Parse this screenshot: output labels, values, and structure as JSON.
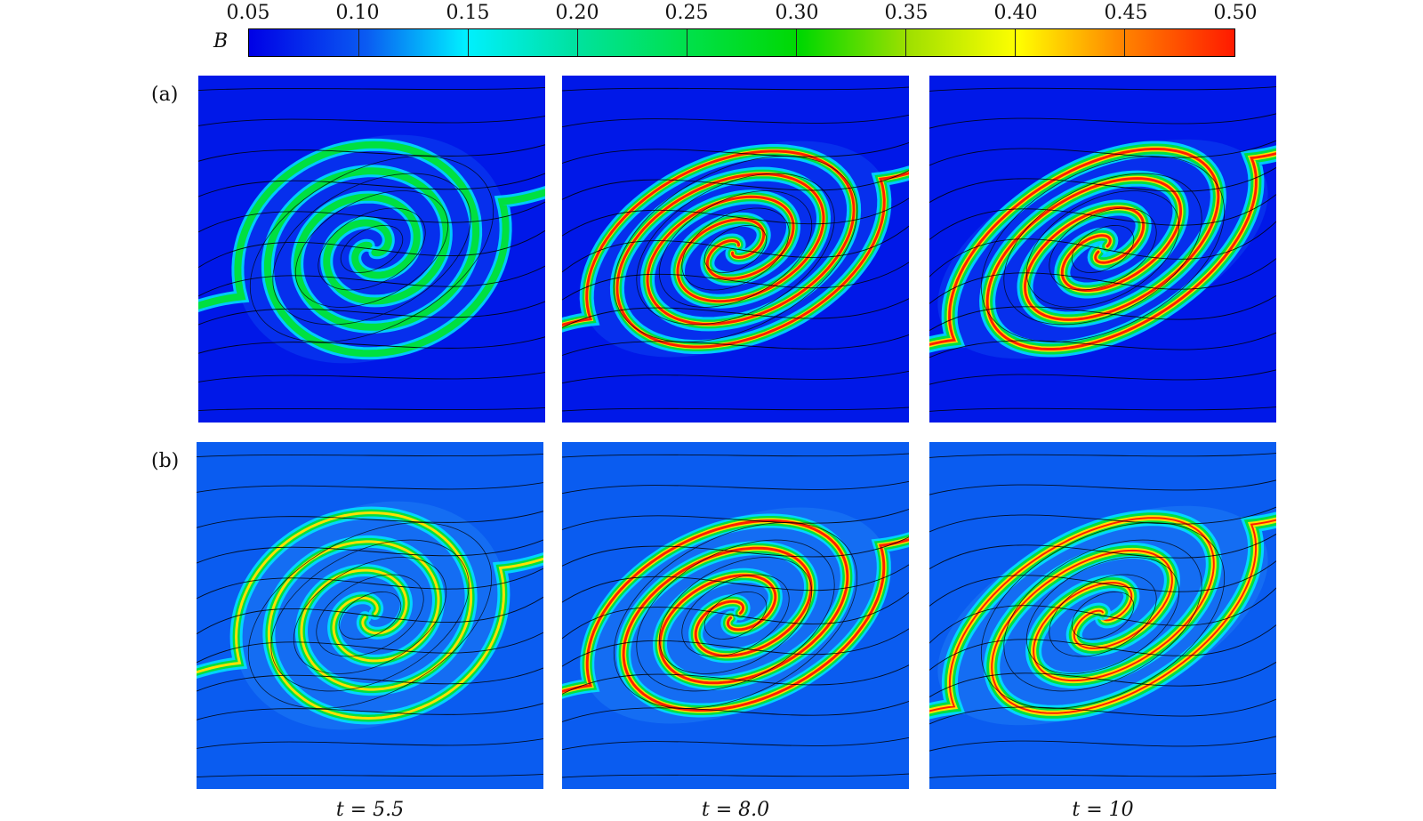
{
  "colorbar": {
    "symbol": "B",
    "ticks": [
      "0.05",
      "0.10",
      "0.15",
      "0.20",
      "0.25",
      "0.30",
      "0.35",
      "0.40",
      "0.45",
      "0.50"
    ]
  },
  "rows": [
    {
      "label": "(a)",
      "style": "fine"
    },
    {
      "label": "(b)",
      "style": "coarse"
    }
  ],
  "times": [
    "t = 5.5",
    "t = 8.0",
    "t = 10"
  ],
  "colors": {
    "background_a": "#0018e8",
    "background_b": "#0a5cf0",
    "band_outer": "#00e8ff",
    "band_mid": "#00e040",
    "band_inner": "#ffe000",
    "band_core": "#ff2000",
    "streamline": "#000000"
  }
}
